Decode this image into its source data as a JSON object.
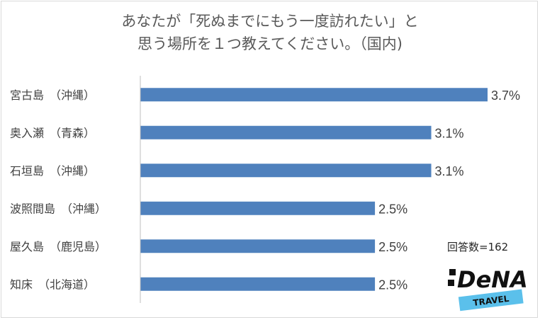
{
  "title": {
    "line1": "あなたが「死ぬまでにもう一度訪れたい」と",
    "line2": "思う場所を１つ教えてください。（国内)"
  },
  "respondents_note": "回答数=162",
  "logo": {
    "brand": "DeNA",
    "sub": "TRAVEL",
    "colors": {
      "text": "#111111",
      "ribbon": "#5bc0eb"
    }
  },
  "colors": {
    "bar": "#4f81bd",
    "axis": "#bfbfbf",
    "text": "#404040"
  },
  "chart_data": {
    "type": "bar",
    "orientation": "horizontal",
    "categories": [
      "宮古島　（沖縄）",
      "奥入瀬　（青森）",
      "石垣島　（沖縄）",
      "波照間島　（沖縄）",
      "屋久島　（鹿児島）",
      "知床　（北海道）"
    ],
    "values": [
      3.7,
      3.1,
      3.1,
      2.5,
      2.5,
      2.5
    ],
    "value_labels": [
      "3.7%",
      "3.1%",
      "3.1%",
      "2.5%",
      "2.5%",
      "2.5%"
    ],
    "unit": "%",
    "xlim": [
      0,
      3.7
    ],
    "grid": false,
    "legend": "none"
  }
}
